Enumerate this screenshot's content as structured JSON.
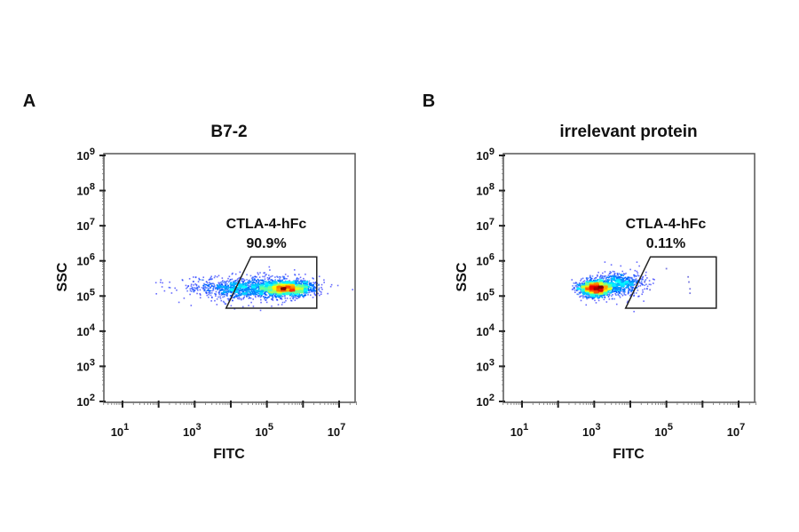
{
  "chart_data": [
    {
      "type": "scatter",
      "panel_label": "A",
      "title": "B7-2",
      "xlabel": "FITC",
      "ylabel": "SSC",
      "xscale": "log",
      "yscale": "log",
      "xlim": [
        3,
        30000000
      ],
      "ylim": [
        100,
        1000000000
      ],
      "x_tick_labels": [
        {
          "base": "10",
          "exp": "1"
        },
        {
          "base": "10",
          "exp": "3"
        },
        {
          "base": "10",
          "exp": "5"
        },
        {
          "base": "10",
          "exp": "7"
        }
      ],
      "x_tick_values": [
        10,
        1000,
        100000,
        10000000
      ],
      "y_tick_labels": [
        {
          "base": "10",
          "exp": "2"
        },
        {
          "base": "10",
          "exp": "3"
        },
        {
          "base": "10",
          "exp": "4"
        },
        {
          "base": "10",
          "exp": "5"
        },
        {
          "base": "10",
          "exp": "6"
        },
        {
          "base": "10",
          "exp": "7"
        },
        {
          "base": "10",
          "exp": "8"
        },
        {
          "base": "10",
          "exp": "9"
        }
      ],
      "y_tick_values": [
        100,
        1000,
        10000,
        100000,
        1000000,
        10000000,
        100000000,
        1000000000
      ],
      "gate": {
        "name": "CTLA-4-hFc",
        "percent": "90.9%",
        "polygon": [
          [
            7400,
            45000
          ],
          [
            36000,
            1300000
          ],
          [
            2400000,
            1300000
          ],
          [
            2400000,
            45000
          ]
        ]
      },
      "populations": [
        {
          "fitc_log10_mean": 4.6,
          "fitc_log10_sd": 0.85,
          "ssc_log10_mean": 5.22,
          "ssc_log10_sd": 0.16,
          "events": 1300
        },
        {
          "fitc_log10_mean": 5.55,
          "fitc_log10_sd": 0.33,
          "ssc_log10_mean": 5.22,
          "ssc_log10_sd": 0.1,
          "events": 1500
        }
      ],
      "colormap": "jet density"
    },
    {
      "type": "scatter",
      "panel_label": "B",
      "title": "irrelevant protein",
      "xlabel": "FITC",
      "ylabel": "SSC",
      "xscale": "log",
      "yscale": "log",
      "xlim": [
        3,
        30000000
      ],
      "ylim": [
        100,
        1000000000
      ],
      "x_tick_labels": [
        {
          "base": "10",
          "exp": "1"
        },
        {
          "base": "10",
          "exp": "3"
        },
        {
          "base": "10",
          "exp": "5"
        },
        {
          "base": "10",
          "exp": "7"
        }
      ],
      "x_tick_values": [
        10,
        1000,
        100000,
        10000000
      ],
      "y_tick_labels": [
        {
          "base": "10",
          "exp": "2"
        },
        {
          "base": "10",
          "exp": "3"
        },
        {
          "base": "10",
          "exp": "4"
        },
        {
          "base": "10",
          "exp": "5"
        },
        {
          "base": "10",
          "exp": "6"
        },
        {
          "base": "10",
          "exp": "7"
        },
        {
          "base": "10",
          "exp": "8"
        },
        {
          "base": "10",
          "exp": "9"
        }
      ],
      "y_tick_values": [
        100,
        1000,
        10000,
        100000,
        1000000,
        10000000,
        100000000,
        1000000000
      ],
      "gate": {
        "name": "CTLA-4-hFc",
        "percent": "0.11%",
        "polygon": [
          [
            7400,
            45000
          ],
          [
            36000,
            1300000
          ],
          [
            2400000,
            1300000
          ],
          [
            2400000,
            45000
          ]
        ]
      },
      "populations": [
        {
          "fitc_log10_mean": 3.05,
          "fitc_log10_sd": 0.22,
          "ssc_log10_mean": 5.22,
          "ssc_log10_sd": 0.11,
          "events": 1600
        },
        {
          "fitc_log10_mean": 3.7,
          "fitc_log10_sd": 0.35,
          "ssc_log10_mean": 5.35,
          "ssc_log10_sd": 0.16,
          "events": 600
        }
      ],
      "gated_events": [
        [
          25000,
          250000
        ],
        [
          35000,
          150000
        ],
        [
          100000,
          600000
        ],
        [
          400000,
          350000
        ],
        [
          420000,
          250000
        ],
        [
          450000,
          160000
        ],
        [
          450000,
          120000
        ]
      ],
      "colormap": "jet density"
    }
  ]
}
